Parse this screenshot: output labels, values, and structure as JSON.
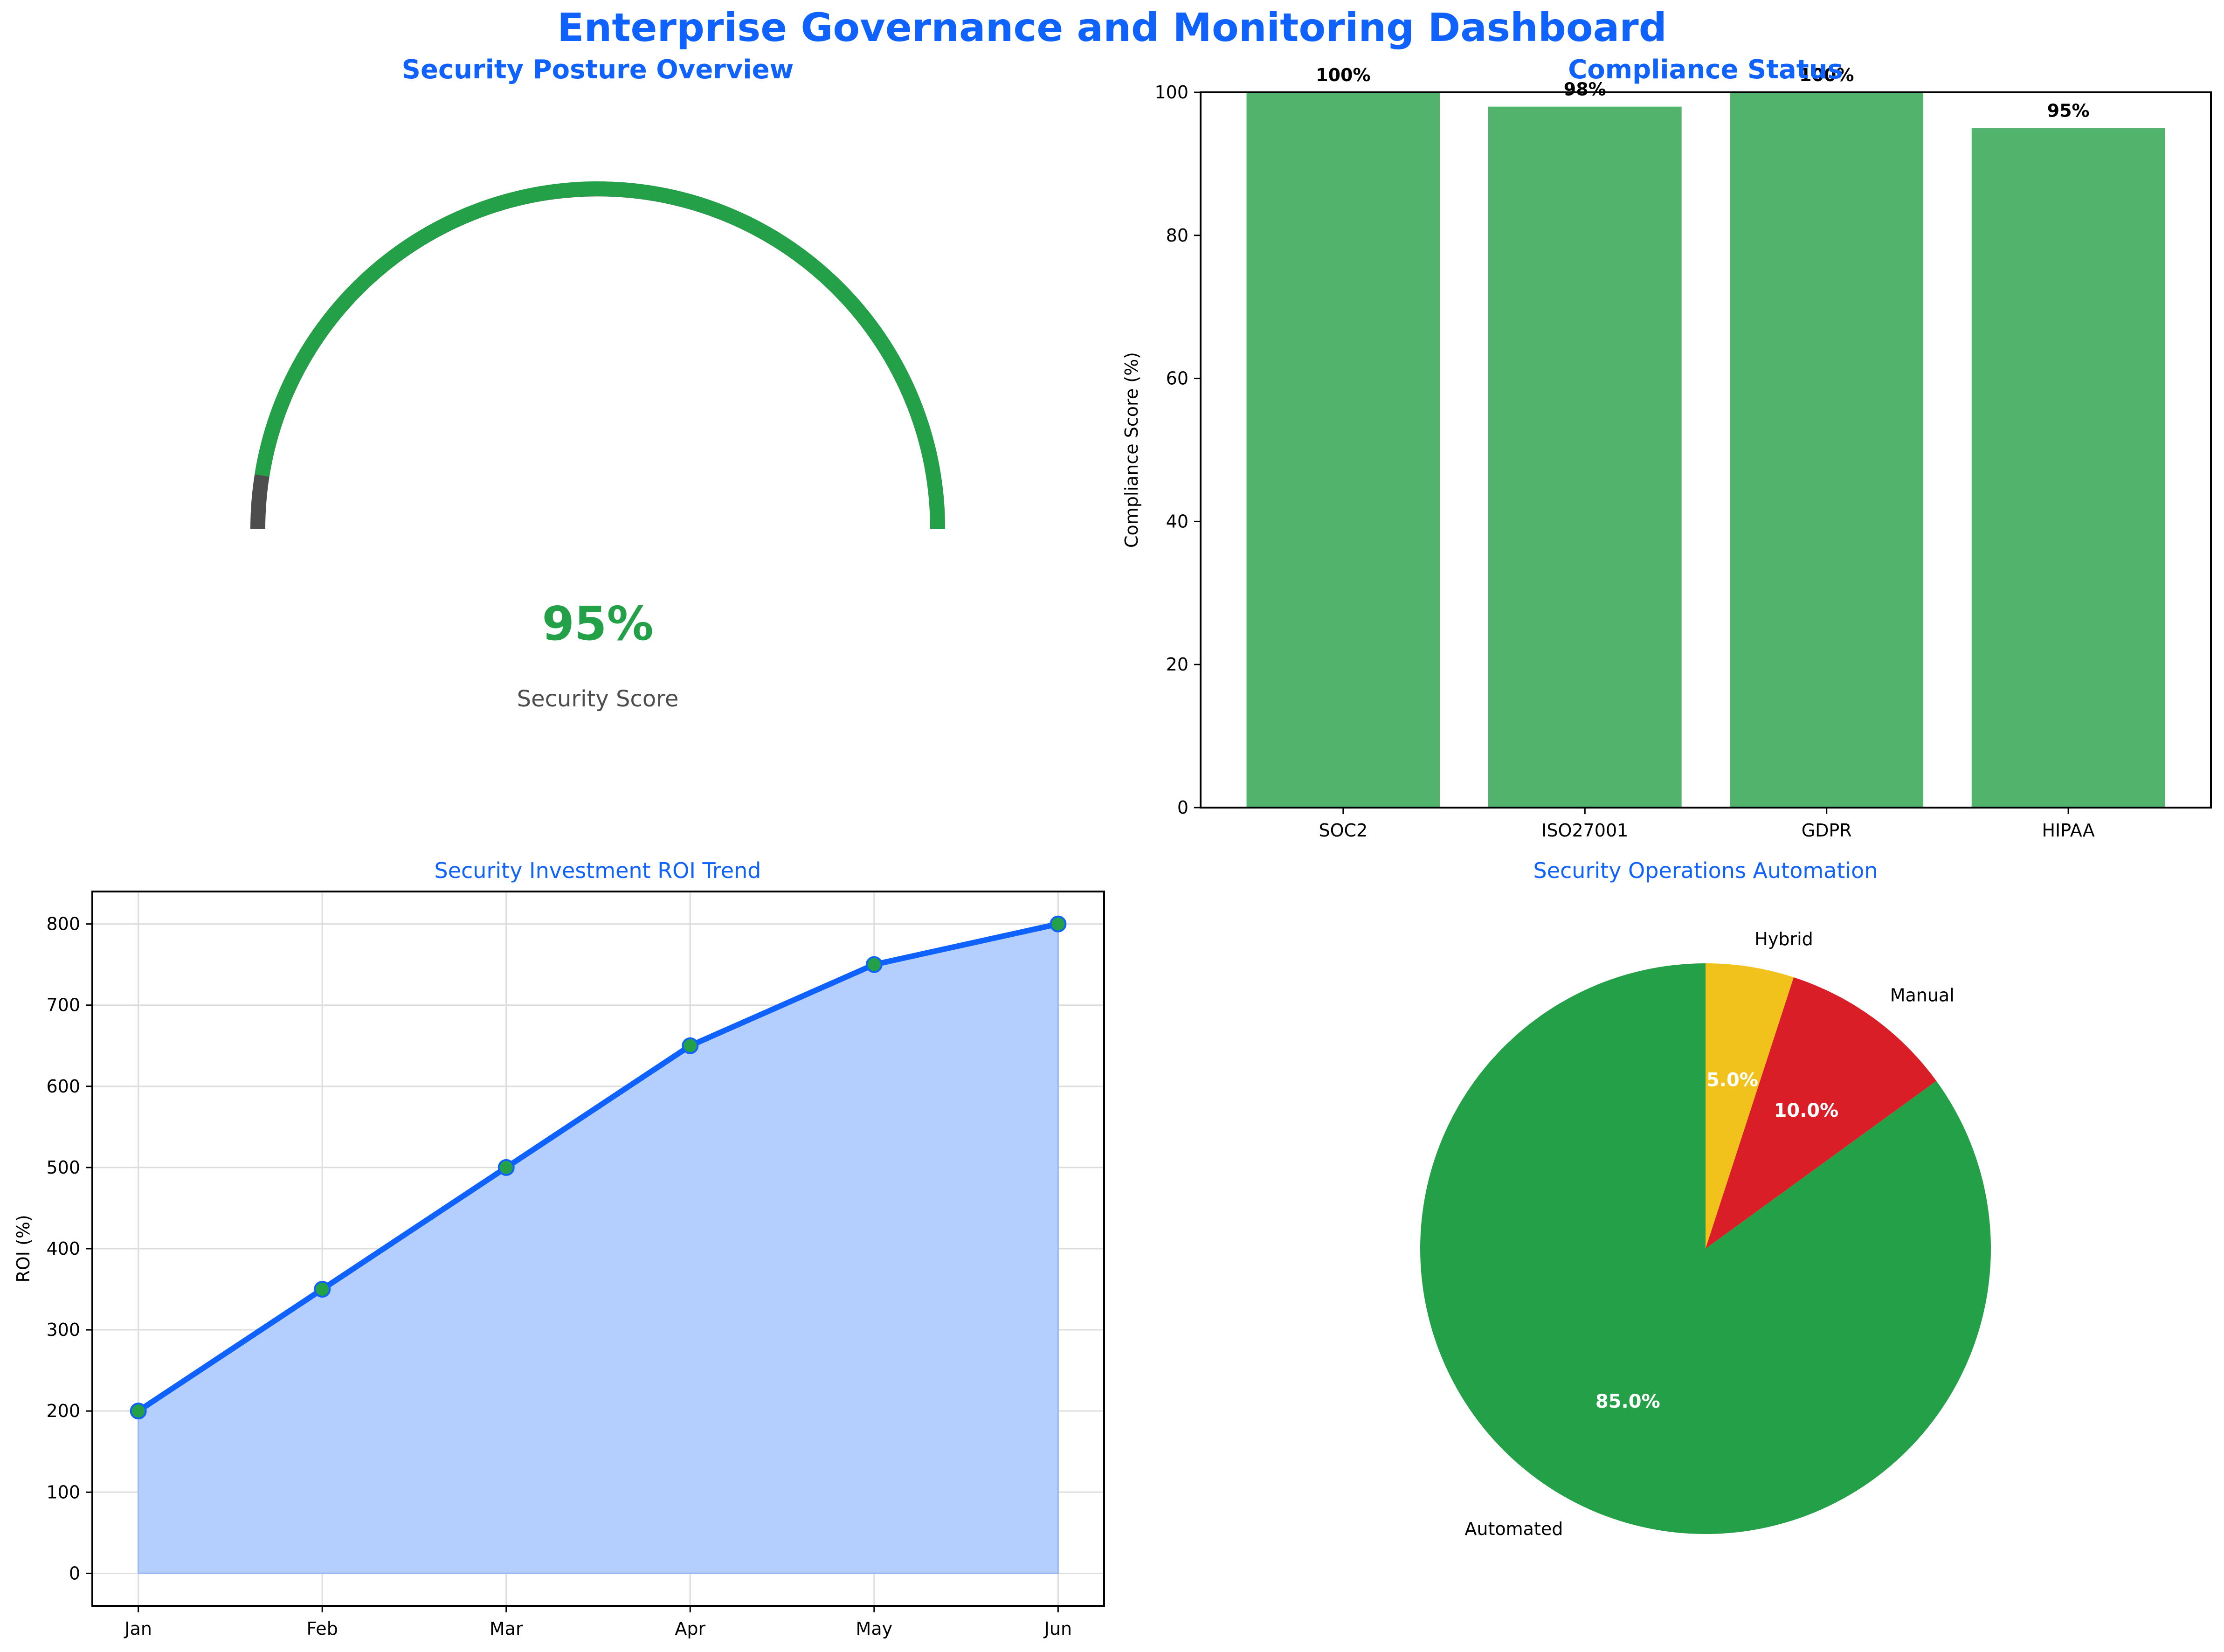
{
  "page_title": "Enterprise Governance and Monitoring Dashboard",
  "colors": {
    "title_blue": "#0f62fe",
    "green": "#24a148",
    "bar_green": "#52b46c",
    "gauge_track": "#4d4d4d",
    "line_blue": "#0f62fe",
    "area_fill": "#b4cefd",
    "marker_fill": "#24a148",
    "red": "#da1e28",
    "yellow": "#f1c21b",
    "grey_text": "#4d4d4d"
  },
  "chart_data": [
    {
      "id": "security-gauge",
      "type": "gauge",
      "title": "Security Posture Overview",
      "value": 95,
      "value_label": "95%",
      "caption": "Security Score",
      "range": [
        0,
        100
      ]
    },
    {
      "id": "compliance",
      "type": "bar",
      "title": "Compliance Status",
      "categories": [
        "SOC2",
        "ISO27001",
        "GDPR",
        "HIPAA"
      ],
      "values": [
        100,
        98,
        100,
        95
      ],
      "labels": [
        "100%",
        "98%",
        "100%",
        "95%"
      ],
      "ylabel": "Compliance Score (%)",
      "ylim": [
        0,
        100
      ],
      "yticks": [
        "0",
        "20",
        "40",
        "60",
        "80",
        "100"
      ]
    },
    {
      "id": "roi",
      "type": "area",
      "title": "Security Investment ROI Trend",
      "categories": [
        "Jan",
        "Feb",
        "Mar",
        "Apr",
        "May",
        "Jun"
      ],
      "values": [
        200,
        350,
        500,
        650,
        750,
        800
      ],
      "ylabel": "ROI (%)",
      "ylim": [
        -40,
        840
      ],
      "yticks": [
        "0",
        "100",
        "200",
        "300",
        "400",
        "500",
        "600",
        "700",
        "800"
      ],
      "grid": true
    },
    {
      "id": "automation",
      "type": "pie",
      "title": "Security Operations Automation",
      "slices": [
        {
          "label": "Automated",
          "value": 85,
          "pct": "85.0%",
          "color": "#24a148"
        },
        {
          "label": "Manual",
          "value": 10,
          "pct": "10.0%",
          "color": "#da1e28"
        },
        {
          "label": "Hybrid",
          "value": 5,
          "pct": "5.0%",
          "color": "#f1c21b"
        }
      ],
      "start_angle": 90,
      "direction": "clockwise"
    }
  ]
}
